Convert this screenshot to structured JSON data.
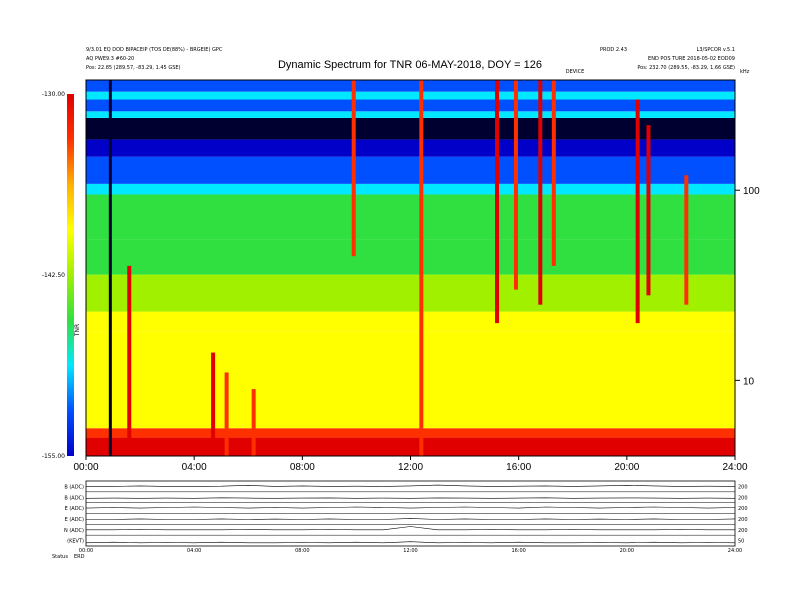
{
  "chart_data": {
    "type": "heatmap",
    "title": "Dynamic Spectrum for TNR 06-MAY-2018, DOY = 126",
    "header": {
      "left_line1": "9/3.01 EQ DOD BIPACEIP (TOS DE(88%) - BRGEIE) GPC",
      "left_line2": "AQ PWE9.3 #60-20",
      "left_line3": "Pos:    22.85 (289.57, -83.29, 1.45 GSE)",
      "right_line1a": "PROD 2.43",
      "right_line1b": "L3/SPCOR v.5.1",
      "right_line2": "END POS TURE 2018-05-02 EOD09",
      "right_line3": "Pos:    232.70 (289.55, -83.29, 1.66 GSE)",
      "mid_label": "DEVICE",
      "corner_label": "kHz"
    },
    "x_axis": {
      "range": [
        0,
        24
      ],
      "unit": "hours",
      "tick_labels": [
        "00:00",
        "04:00",
        "08:00",
        "12:00",
        "16:00",
        "20:00",
        "24:00"
      ]
    },
    "y_axis": {
      "scale": "log",
      "unit": "kHz",
      "range": [
        4,
        380
      ],
      "tick_labels": [
        "100",
        "10"
      ],
      "tick_values": [
        100,
        10
      ]
    },
    "colorbar": {
      "tick_labels": [
        "-130.00",
        "-142.50",
        "-155.00"
      ],
      "tick_values": [
        -130,
        -142.5,
        -155
      ],
      "range": [
        -155,
        -130
      ],
      "label": "TNR",
      "colors": [
        "#0000c8",
        "#0050ff",
        "#00e8ff",
        "#30e040",
        "#a0f000",
        "#ffff00",
        "#ffb000",
        "#ff3000",
        "#e00000"
      ]
    },
    "bands": [
      {
        "from": 4,
        "to": 5,
        "level": -130
      },
      {
        "from": 5,
        "to": 5.6,
        "level": -133
      },
      {
        "from": 5.6,
        "to": 18,
        "level": -138
      },
      {
        "from": 18,
        "to": 23,
        "level": -140
      },
      {
        "from": 23,
        "to": 36,
        "level": -142
      },
      {
        "from": 36,
        "to": 55,
        "level": -146
      },
      {
        "from": 55,
        "to": 95,
        "level": -147
      },
      {
        "from": 95,
        "to": 108,
        "level": -150
      },
      {
        "from": 108,
        "to": 150,
        "level": -152
      },
      {
        "from": 150,
        "to": 185,
        "level": -154
      },
      {
        "from": 185,
        "to": 240,
        "level": -156
      },
      {
        "from": 240,
        "to": 260,
        "level": -148
      },
      {
        "from": 260,
        "to": 300,
        "level": -152
      },
      {
        "from": 300,
        "to": 330,
        "level": -148
      },
      {
        "from": 330,
        "to": 380,
        "level": -151
      }
    ],
    "bursts": [
      {
        "time": 0.9,
        "f_low": 4,
        "f_high": 380,
        "level": -160
      },
      {
        "time": 1.6,
        "f_low": 4,
        "f_high": 40,
        "level": -131
      },
      {
        "time": 4.7,
        "f_low": 4,
        "f_high": 14,
        "level": -131
      },
      {
        "time": 5.2,
        "f_low": 4,
        "f_high": 11,
        "level": -132
      },
      {
        "time": 6.2,
        "f_low": 4,
        "f_high": 9,
        "level": -132
      },
      {
        "time": 9.9,
        "f_low": 45,
        "f_high": 380,
        "level": -133
      },
      {
        "time": 12.4,
        "f_low": 4,
        "f_high": 380,
        "level": -132
      },
      {
        "time": 15.2,
        "f_low": 20,
        "f_high": 380,
        "level": -131
      },
      {
        "time": 15.9,
        "f_low": 30,
        "f_high": 380,
        "level": -133
      },
      {
        "time": 16.8,
        "f_low": 25,
        "f_high": 380,
        "level": -131
      },
      {
        "time": 17.3,
        "f_low": 40,
        "f_high": 380,
        "level": -132
      },
      {
        "time": 20.4,
        "f_low": 20,
        "f_high": 300,
        "level": -131
      },
      {
        "time": 20.8,
        "f_low": 28,
        "f_high": 220,
        "level": -130
      },
      {
        "time": 22.2,
        "f_low": 25,
        "f_high": 120,
        "level": -132
      }
    ],
    "lower_panels": {
      "left_labels": [
        "B (ADC)",
        "B (ADC)",
        "E (ADC)",
        "E (ADC)",
        "N (ADC)",
        "(KEVT)"
      ],
      "right_labels": [
        "200",
        "200",
        "200",
        "200",
        "200",
        "50"
      ],
      "series": [
        {
          "label": "B (ADC)",
          "values": [
            0.5,
            0.5,
            0.55,
            0.5,
            0.5,
            0.52,
            0.6,
            0.5,
            0.55,
            0.5,
            0.52,
            0.5,
            0.55,
            0.62,
            0.55,
            0.5,
            0.52,
            0.55,
            0.5,
            0.55,
            0.6,
            0.55,
            0.5,
            0.52,
            0.5
          ]
        },
        {
          "label": "B (ADC)",
          "values": [
            0.4,
            0.42,
            0.4,
            0.42,
            0.4,
            0.45,
            0.42,
            0.4,
            0.42,
            0.44,
            0.4,
            0.42,
            0.4,
            0.44,
            0.42,
            0.4,
            0.42,
            0.45,
            0.4,
            0.42,
            0.44,
            0.42,
            0.4,
            0.42,
            0.4
          ]
        },
        {
          "label": "E (ADC)",
          "values": [
            0.5,
            0.55,
            0.5,
            0.55,
            0.6,
            0.55,
            0.5,
            0.55,
            0.5,
            0.55,
            0.6,
            0.55,
            0.5,
            0.55,
            0.6,
            0.55,
            0.5,
            0.6,
            0.55,
            0.5,
            0.55,
            0.6,
            0.55,
            0.5,
            0.55
          ]
        },
        {
          "label": "E (ADC)",
          "values": [
            0.45,
            0.45,
            0.5,
            0.45,
            0.45,
            0.5,
            0.45,
            0.48,
            0.45,
            0.5,
            0.45,
            0.45,
            0.55,
            0.45,
            0.5,
            0.45,
            0.45,
            0.5,
            0.45,
            0.48,
            0.45,
            0.5,
            0.45,
            0.45,
            0.5
          ]
        },
        {
          "label": "N (ADC)",
          "values": [
            0.5,
            0.5,
            0.52,
            0.5,
            0.5,
            0.5,
            0.52,
            0.5,
            0.5,
            0.52,
            0.5,
            0.5,
            0.8,
            0.5,
            0.5,
            0.52,
            0.5,
            0.5,
            0.52,
            0.5,
            0.5,
            0.5,
            0.52,
            0.5,
            0.5
          ]
        },
        {
          "label": "(KEVT)",
          "values": [
            0.3,
            0.35,
            0.3,
            0.32,
            0.3,
            0.35,
            0.3,
            0.3,
            0.32,
            0.3,
            0.35,
            0.3,
            0.4,
            0.3,
            0.32,
            0.3,
            0.35,
            0.3,
            0.3,
            0.32,
            0.3,
            0.35,
            0.3,
            0.32,
            0.3
          ]
        }
      ],
      "x_tick_labels": [
        "00:00",
        "04:00",
        "08:00",
        "12:00",
        "16:00",
        "20:00",
        "24:00"
      ],
      "footer_left": "Status",
      "footer_right": "ERD"
    }
  }
}
